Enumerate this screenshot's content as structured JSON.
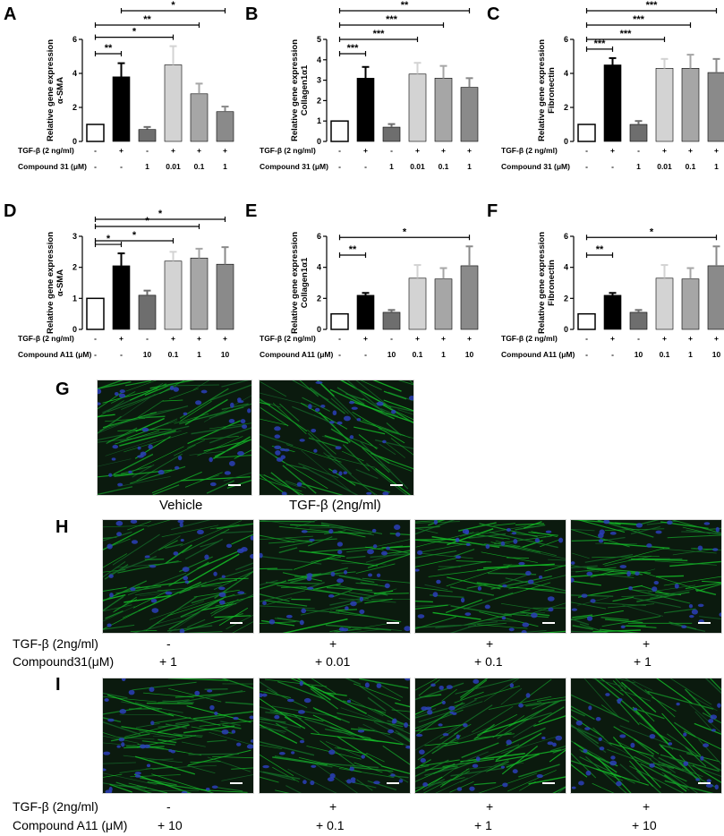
{
  "colors": {
    "white": "#ffffff",
    "black": "#000000",
    "gray_dark": "#6e6e6e",
    "gray_light": "#d3d3d3",
    "gray_mid": "#a6a6a6",
    "gray_med": "#8a8a8a"
  },
  "chart_data": [
    {
      "panel": "A",
      "type": "bar",
      "ylabel_line1": "Relative gene expression",
      "ylabel_line2": "α-SMA",
      "ylim": [
        0,
        6
      ],
      "yticks": [
        0,
        2,
        4,
        6
      ],
      "row1_label": "TGF-β (2 ng/ml)",
      "row1": [
        "-",
        "+",
        "-",
        "+",
        "+",
        "+"
      ],
      "row2_label": "Compound 31 (μM)",
      "row2": [
        "-",
        "-",
        "1",
        "0.01",
        "0.1",
        "1"
      ],
      "values": [
        1,
        3.8,
        0.7,
        4.5,
        2.8,
        1.75
      ],
      "errors": [
        0,
        0.8,
        0.15,
        1.1,
        0.6,
        0.3
      ],
      "sig": [
        {
          "a": 0,
          "b": 1,
          "label": "**"
        },
        {
          "a": 0,
          "b": 3,
          "label": "*"
        },
        {
          "a": 0,
          "b": 4,
          "label": "**"
        },
        {
          "a": 1,
          "b": 5,
          "label": "*"
        }
      ]
    },
    {
      "panel": "B",
      "type": "bar",
      "ylabel_line1": "Relative gene expression",
      "ylabel_line2": "Collagen1α1",
      "ylim": [
        0,
        5
      ],
      "yticks": [
        0,
        1,
        2,
        3,
        4,
        5
      ],
      "row1_label": "TGF-β (2 ng/ml)",
      "row1": [
        "-",
        "+",
        "-",
        "+",
        "+",
        "+"
      ],
      "row2_label": "Compound 31 (μM)",
      "row2": [
        "-",
        "-",
        "1",
        "0.01",
        "0.1",
        "1"
      ],
      "values": [
        1,
        3.1,
        0.7,
        3.3,
        3.1,
        2.65
      ],
      "errors": [
        0,
        0.55,
        0.15,
        0.55,
        0.6,
        0.45
      ],
      "sig": [
        {
          "a": 0,
          "b": 1,
          "label": "***"
        },
        {
          "a": 0,
          "b": 3,
          "label": "***"
        },
        {
          "a": 0,
          "b": 4,
          "label": "***"
        },
        {
          "a": 0,
          "b": 5,
          "label": "**"
        }
      ]
    },
    {
      "panel": "C",
      "type": "bar",
      "ylabel_line1": "Relative gene expression",
      "ylabel_line2": "Fibronectin",
      "ylim": [
        0,
        6
      ],
      "yticks": [
        0,
        2,
        4,
        6
      ],
      "row1_label": "TGF-β (2 ng/ml)",
      "row1": [
        "-",
        "+",
        "-",
        "+",
        "+",
        "+"
      ],
      "row2_label": "Compound 31 (μM)",
      "row2": [
        "-",
        "-",
        "1",
        "0.01",
        "0.1",
        "1"
      ],
      "values": [
        1,
        4.5,
        1,
        4.3,
        4.3,
        4.05
      ],
      "errors": [
        0,
        0.4,
        0.2,
        0.55,
        0.8,
        0.8
      ],
      "sig": [
        {
          "a": 0,
          "b": 1,
          "label": "***"
        },
        {
          "a": 0,
          "b": 3,
          "label": "***"
        },
        {
          "a": 0,
          "b": 4,
          "label": "***"
        },
        {
          "a": 0,
          "b": 5,
          "label": "***"
        }
      ]
    },
    {
      "panel": "D",
      "type": "bar",
      "ylabel_line1": "Relative gene expression",
      "ylabel_line2": "α-SMA",
      "ylim": [
        0,
        3
      ],
      "yticks": [
        0,
        1,
        2,
        3
      ],
      "row1_label": "TGF-β (2 ng/ml)",
      "row1": [
        "-",
        "+",
        "-",
        "+",
        "+",
        "+"
      ],
      "row2_label": "Compound A11 (μM)",
      "row2": [
        "-",
        "-",
        "10",
        "0.1",
        "1",
        "10"
      ],
      "values": [
        1,
        2.05,
        1.1,
        2.2,
        2.3,
        2.1
      ],
      "errors": [
        0,
        0.4,
        0.15,
        0.3,
        0.3,
        0.55
      ],
      "sig": [
        {
          "a": 0,
          "b": 1,
          "label": "*"
        },
        {
          "a": 0,
          "b": 3,
          "label": "*"
        },
        {
          "a": 0,
          "b": 4,
          "label": "*"
        },
        {
          "a": 0,
          "b": 5,
          "label": "*"
        }
      ]
    },
    {
      "panel": "E",
      "type": "bar",
      "ylabel_line1": "Relative gene expression",
      "ylabel_line2": "Collagen1α1",
      "ylim": [
        0,
        6
      ],
      "yticks": [
        0,
        2,
        4,
        6
      ],
      "row1_label": "TGF-β (2 ng/ml)",
      "row1": [
        "-",
        "+",
        "-",
        "+",
        "+",
        "+"
      ],
      "row2_label": "Compound A11 (μM)",
      "row2": [
        "-",
        "-",
        "10",
        "0.1",
        "1",
        "10"
      ],
      "values": [
        1,
        2.2,
        1.1,
        3.3,
        3.25,
        4.1
      ],
      "errors": [
        0,
        0.15,
        0.15,
        0.85,
        0.7,
        1.25
      ],
      "sig": [
        {
          "a": 0,
          "b": 1,
          "label": "**"
        },
        {
          "a": 0,
          "b": 5,
          "label": "*"
        }
      ]
    },
    {
      "panel": "F",
      "type": "bar",
      "ylabel_line1": "Relative gene expression",
      "ylabel_line2": "Fibronectin",
      "ylim": [
        0,
        6
      ],
      "yticks": [
        0,
        2,
        4,
        6
      ],
      "row1_label": "TGF-β (2 ng/ml)",
      "row1": [
        "-",
        "+",
        "-",
        "+",
        "+",
        "+"
      ],
      "row2_label": "Compound A11 (μM)",
      "row2": [
        "-",
        "-",
        "10",
        "0.1",
        "1",
        "10"
      ],
      "values": [
        1,
        2.2,
        1.1,
        3.3,
        3.25,
        4.1
      ],
      "errors": [
        0,
        0.15,
        0.15,
        0.85,
        0.7,
        1.25
      ],
      "sig": [
        {
          "a": 0,
          "b": 1,
          "label": "**"
        },
        {
          "a": 0,
          "b": 5,
          "label": "*"
        }
      ]
    }
  ],
  "micrographs": {
    "G": {
      "letter": "G",
      "captions": [
        "Vehicle",
        "TGF-β (2ng/ml)"
      ]
    },
    "H": {
      "letter": "H",
      "row1_label": "TGF-β (2ng/ml)",
      "row2_label": "Compound31(μM)",
      "row1": [
        "-",
        "+",
        "+",
        "+"
      ],
      "row2": [
        "+ 1",
        "+ 0.01",
        "+ 0.1",
        "+ 1"
      ]
    },
    "I": {
      "letter": "I",
      "row1_label": "TGF-β (2ng/ml)",
      "row2_label": "Compound A11 (μM)",
      "row1": [
        "-",
        "+",
        "+",
        "+"
      ],
      "row2": [
        "+ 10",
        "+ 0.1",
        "+ 1",
        "+ 10"
      ]
    }
  }
}
